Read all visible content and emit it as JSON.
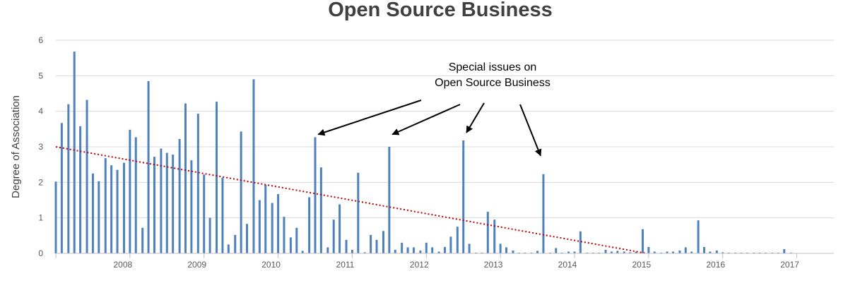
{
  "chart_data": {
    "type": "bar",
    "title": "Open Source Business",
    "xlabel": "",
    "ylabel": "Degree of Association",
    "ylim": [
      0,
      6
    ],
    "yticks": [
      0,
      1,
      2,
      3,
      4,
      5,
      6
    ],
    "grid": true,
    "bar_color": "#4f81bd",
    "xlim": [
      2007.5,
      2018.0
    ],
    "year_labels": [
      "2008",
      "2009",
      "2010",
      "2011",
      "2012",
      "2013",
      "2014",
      "2015",
      "2016",
      "2017"
    ],
    "x": [
      2007.5,
      2007.58,
      2007.67,
      2007.75,
      2007.83,
      2007.92,
      2008.0,
      2008.08,
      2008.17,
      2008.25,
      2008.33,
      2008.42,
      2008.5,
      2008.58,
      2008.67,
      2008.75,
      2008.83,
      2008.92,
      2009.0,
      2009.08,
      2009.17,
      2009.25,
      2009.33,
      2009.42,
      2009.5,
      2009.58,
      2009.67,
      2009.75,
      2009.83,
      2009.92,
      2010.0,
      2010.08,
      2010.17,
      2010.25,
      2010.33,
      2010.42,
      2010.5,
      2010.58,
      2010.67,
      2010.75,
      2010.83,
      2010.92,
      2011.0,
      2011.08,
      2011.17,
      2011.25,
      2011.33,
      2011.42,
      2011.5,
      2011.58,
      2011.67,
      2011.75,
      2011.83,
      2011.92,
      2012.0,
      2012.08,
      2012.17,
      2012.25,
      2012.33,
      2012.42,
      2012.5,
      2012.58,
      2012.67,
      2012.75,
      2012.83,
      2012.92,
      2013.0,
      2013.08,
      2013.17,
      2013.25,
      2013.33,
      2013.42,
      2013.5,
      2013.58,
      2013.67,
      2013.75,
      2013.83,
      2013.92,
      2014.0,
      2014.08,
      2014.17,
      2014.25,
      2014.33,
      2014.42,
      2014.5,
      2014.58,
      2014.67,
      2014.75,
      2014.83,
      2014.92,
      2015.0,
      2015.08,
      2015.17,
      2015.25,
      2015.33,
      2015.42,
      2015.5,
      2015.58,
      2015.67,
      2015.75,
      2015.83,
      2015.92,
      2016.0,
      2016.08,
      2016.17,
      2016.25,
      2016.33,
      2016.42,
      2016.5,
      2016.58,
      2016.67,
      2016.75,
      2016.83,
      2016.92,
      2017.0,
      2017.08,
      2017.17,
      2017.25,
      2017.33,
      2017.42
    ],
    "values": [
      2.02,
      3.67,
      4.2,
      5.68,
      3.58,
      4.32,
      2.25,
      2.03,
      2.68,
      2.48,
      2.35,
      2.55,
      3.48,
      3.27,
      0.72,
      4.85,
      2.72,
      2.95,
      2.83,
      2.78,
      3.22,
      4.22,
      2.62,
      3.93,
      2.22,
      1.0,
      4.27,
      2.13,
      0.25,
      0.52,
      3.43,
      0.83,
      4.9,
      1.5,
      1.93,
      1.42,
      1.67,
      1.03,
      0.45,
      0.72,
      0.07,
      1.58,
      3.27,
      2.42,
      0.17,
      0.95,
      1.38,
      0.38,
      0.1,
      2.27,
      0.03,
      0.52,
      0.38,
      0.63,
      3.0,
      0.1,
      0.3,
      0.17,
      0.17,
      0.08,
      0.3,
      0.17,
      0.05,
      0.18,
      0.47,
      0.75,
      3.18,
      0.27,
      0.02,
      0.02,
      1.17,
      0.95,
      0.27,
      0.17,
      0.08,
      0.02,
      0.02,
      0.02,
      0.07,
      2.23,
      0.02,
      0.15,
      0.02,
      0.05,
      0.05,
      0.62,
      0.02,
      0.02,
      0.02,
      0.1,
      0.05,
      0.07,
      0.05,
      0.03,
      0.05,
      0.68,
      0.18,
      0.05,
      0.02,
      0.05,
      0.05,
      0.08,
      0.17,
      0.05,
      0.93,
      0.18,
      0.05,
      0.08,
      0.03,
      0.02,
      0.02,
      0.02,
      0.02,
      0.02,
      0.02,
      0.02,
      0.02,
      0.02,
      0.12,
      0.02
    ],
    "trendline": {
      "style": "dotted",
      "color": "#c00000",
      "from": [
        2007.5,
        3.0
      ],
      "to": [
        2015.47,
        0.0
      ]
    },
    "annotation": {
      "lines": [
        "Special issues on",
        "Open Source Business"
      ],
      "arrow_targets": [
        [
          2011.08,
          3.35
        ],
        [
          2012.08,
          3.35
        ],
        [
          2013.08,
          3.4
        ],
        [
          2014.08,
          2.75
        ]
      ]
    }
  }
}
